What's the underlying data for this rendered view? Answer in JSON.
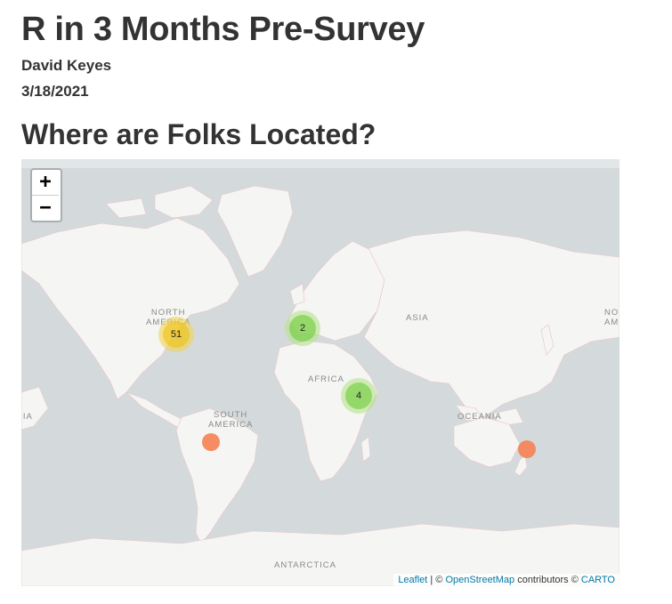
{
  "header": {
    "title": "R in 3 Months Pre-Survey",
    "author": "David Keyes",
    "date": "3/18/2021"
  },
  "section": {
    "title": "Where are Folks Located?"
  },
  "map": {
    "zoom_in": "+",
    "zoom_out": "−",
    "regions": {
      "north_america_1": "NORTH",
      "north_america_2": "AMERICA",
      "south_america_1": "SOUTH",
      "south_america_2": "AMERICA",
      "asia": "ASIA",
      "africa": "AFRICA",
      "oceania": "OCEANIA",
      "antarctica": "ANTARCTICA",
      "left_edge": "RIA",
      "right_edge_1": "NO",
      "right_edge_2": "AME"
    },
    "clusters": [
      {
        "label": "51",
        "color": "yellow"
      },
      {
        "label": "2",
        "color": "green"
      },
      {
        "label": "4",
        "color": "green"
      }
    ],
    "markers": [
      {
        "name": "south-america-marker",
        "color": "#f5865a"
      },
      {
        "name": "new-zealand-marker",
        "color": "#f5865a"
      }
    ],
    "attribution": {
      "leaflet": "Leaflet",
      "sep": " | © ",
      "osm": "OpenStreetMap",
      "contributors": " contributors © ",
      "carto": "CARTO"
    },
    "colors": {
      "water": "#d4dadc",
      "land": "#f5f5f3",
      "border": "#e9c2c6"
    }
  }
}
